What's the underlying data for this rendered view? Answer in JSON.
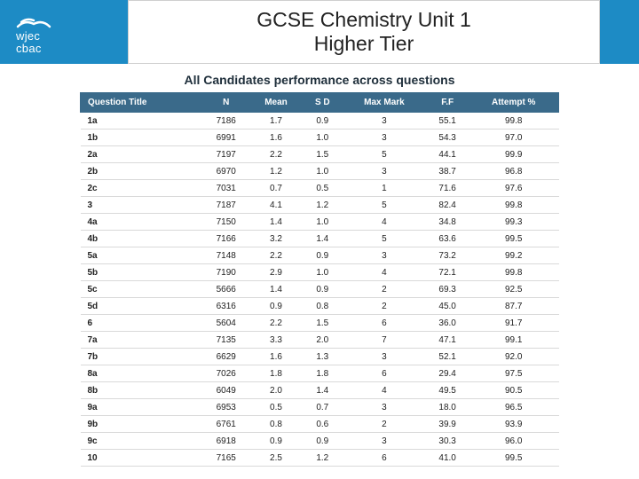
{
  "header": {
    "brand_color": "#1d8bc5",
    "logo_line1": "wjec",
    "logo_line2": "cbac",
    "title_line1": "GCSE Chemistry Unit 1",
    "title_line2": "Higher Tier"
  },
  "table": {
    "caption": "All Candidates performance across questions",
    "header_bg": "#3a6a8a",
    "header_fg": "#ffffff",
    "row_border": "#d9d9d9",
    "columns": [
      "Question Title",
      "N",
      "Mean",
      "S D",
      "Max Mark",
      "F.F",
      "Attempt %"
    ],
    "rows": [
      [
        "1a",
        "7186",
        "1.7",
        "0.9",
        "3",
        "55.1",
        "99.8"
      ],
      [
        "1b",
        "6991",
        "1.6",
        "1.0",
        "3",
        "54.3",
        "97.0"
      ],
      [
        "2a",
        "7197",
        "2.2",
        "1.5",
        "5",
        "44.1",
        "99.9"
      ],
      [
        "2b",
        "6970",
        "1.2",
        "1.0",
        "3",
        "38.7",
        "96.8"
      ],
      [
        "2c",
        "7031",
        "0.7",
        "0.5",
        "1",
        "71.6",
        "97.6"
      ],
      [
        "3",
        "7187",
        "4.1",
        "1.2",
        "5",
        "82.4",
        "99.8"
      ],
      [
        "4a",
        "7150",
        "1.4",
        "1.0",
        "4",
        "34.8",
        "99.3"
      ],
      [
        "4b",
        "7166",
        "3.2",
        "1.4",
        "5",
        "63.6",
        "99.5"
      ],
      [
        "5a",
        "7148",
        "2.2",
        "0.9",
        "3",
        "73.2",
        "99.2"
      ],
      [
        "5b",
        "7190",
        "2.9",
        "1.0",
        "4",
        "72.1",
        "99.8"
      ],
      [
        "5c",
        "5666",
        "1.4",
        "0.9",
        "2",
        "69.3",
        "92.5"
      ],
      [
        "5d",
        "6316",
        "0.9",
        "0.8",
        "2",
        "45.0",
        "87.7"
      ],
      [
        "6",
        "5604",
        "2.2",
        "1.5",
        "6",
        "36.0",
        "91.7"
      ],
      [
        "7a",
        "7135",
        "3.3",
        "2.0",
        "7",
        "47.1",
        "99.1"
      ],
      [
        "7b",
        "6629",
        "1.6",
        "1.3",
        "3",
        "52.1",
        "92.0"
      ],
      [
        "8a",
        "7026",
        "1.8",
        "1.8",
        "6",
        "29.4",
        "97.5"
      ],
      [
        "8b",
        "6049",
        "2.0",
        "1.4",
        "4",
        "49.5",
        "90.5"
      ],
      [
        "9a",
        "6953",
        "0.5",
        "0.7",
        "3",
        "18.0",
        "96.5"
      ],
      [
        "9b",
        "6761",
        "0.8",
        "0.6",
        "2",
        "39.9",
        "93.9"
      ],
      [
        "9c",
        "6918",
        "0.9",
        "0.9",
        "3",
        "30.3",
        "96.0"
      ],
      [
        "10",
        "7165",
        "2.5",
        "1.2",
        "6",
        "41.0",
        "99.5"
      ]
    ]
  }
}
